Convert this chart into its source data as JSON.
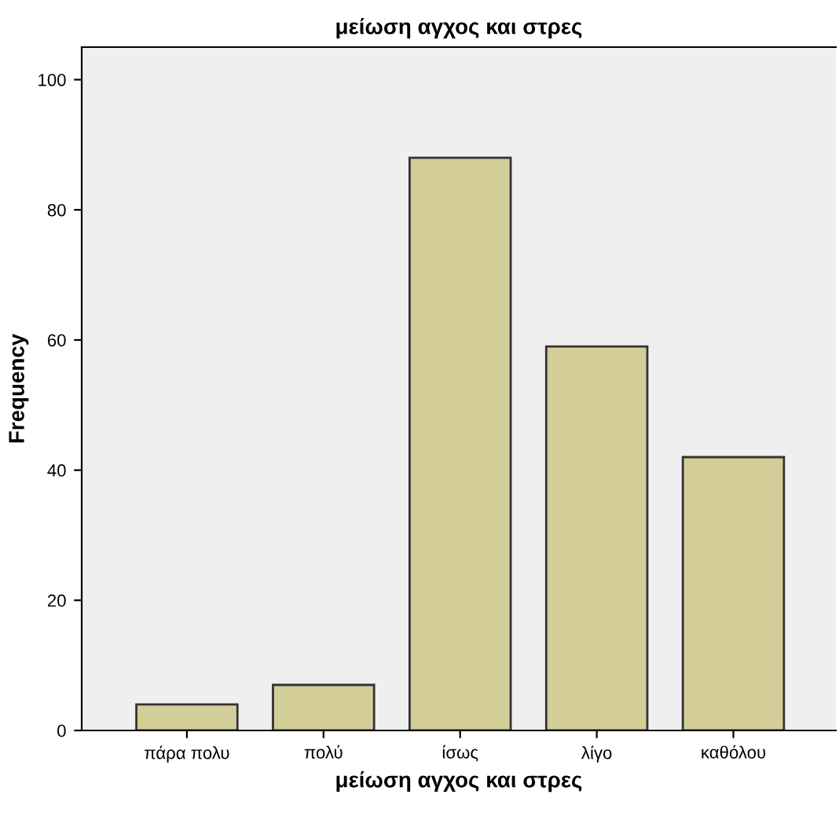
{
  "chart_data": {
    "type": "bar",
    "title": "μείωση αγχος και στρες",
    "xlabel": "μείωση αγχος και στρες",
    "ylabel": "Frequency",
    "categories": [
      "πάρα πολυ",
      "πολύ",
      "ίσως",
      "λίγο",
      "καθόλου"
    ],
    "values": [
      4,
      7,
      88,
      59,
      42
    ],
    "color": "#d3ce97",
    "ylim": [
      0,
      105
    ],
    "yticks": [
      0,
      20,
      40,
      60,
      80,
      100
    ],
    "grid": false
  }
}
